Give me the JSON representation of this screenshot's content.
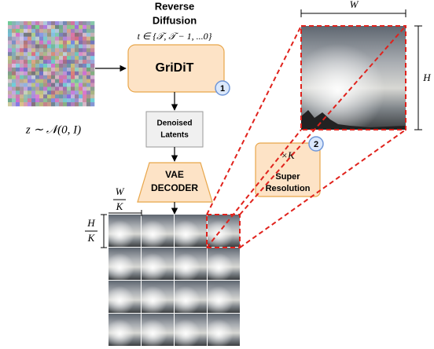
{
  "header": {
    "title": [
      "Reverse",
      "Diffusion"
    ],
    "timestep": "t ∈ {𝒯, 𝒯 − 1, ...0}"
  },
  "noise_label": "z ∼ 𝒩(0, I)",
  "nodes": [
    {
      "label": [
        "GriDiT"
      ],
      "badge": "1"
    },
    {
      "label": [
        "Denoised",
        "Latents"
      ]
    },
    {
      "label": [
        "VAE",
        "DECODER"
      ]
    },
    {
      "label": [
        "Super",
        "Resolution"
      ],
      "factor": "×K",
      "badge": "2"
    }
  ],
  "dimensions": {
    "width": "W",
    "height": "H",
    "tile_width": {
      "num": "W",
      "den": "K"
    },
    "tile_height": {
      "num": "H",
      "den": "K"
    }
  }
}
